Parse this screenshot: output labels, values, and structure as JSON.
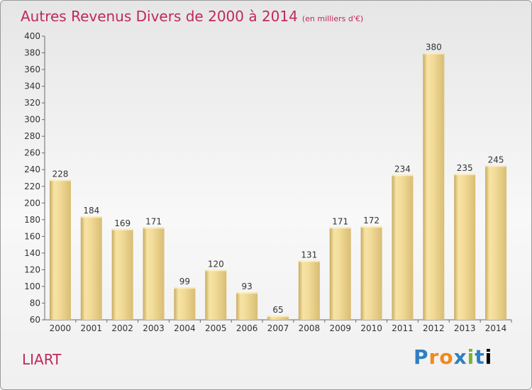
{
  "title": "Autres Revenus Divers de 2000 à 2014",
  "subtitle": "(en milliers d'€)",
  "commune": "LIART",
  "logo_text": "Proxiti",
  "colors": {
    "title": "#c0285a",
    "bar_light": "#f6e3a4",
    "bar_dark": "#c8aa5f",
    "axis": "#6a6a6a"
  },
  "chart_data": {
    "type": "bar",
    "categories": [
      "2000",
      "2001",
      "2002",
      "2003",
      "2004",
      "2005",
      "2006",
      "2007",
      "2008",
      "2009",
      "2010",
      "2011",
      "2012",
      "2013",
      "2014"
    ],
    "values": [
      228,
      184,
      169,
      171,
      99,
      120,
      93,
      65,
      131,
      171,
      172,
      234,
      380,
      235,
      245
    ],
    "title": "Autres Revenus Divers de 2000 à 2014",
    "ylim": [
      60,
      400
    ],
    "yticks": [
      60,
      80,
      100,
      120,
      140,
      160,
      180,
      200,
      220,
      240,
      260,
      280,
      300,
      320,
      340,
      360,
      380,
      400
    ],
    "grid": false,
    "legend": "none"
  }
}
